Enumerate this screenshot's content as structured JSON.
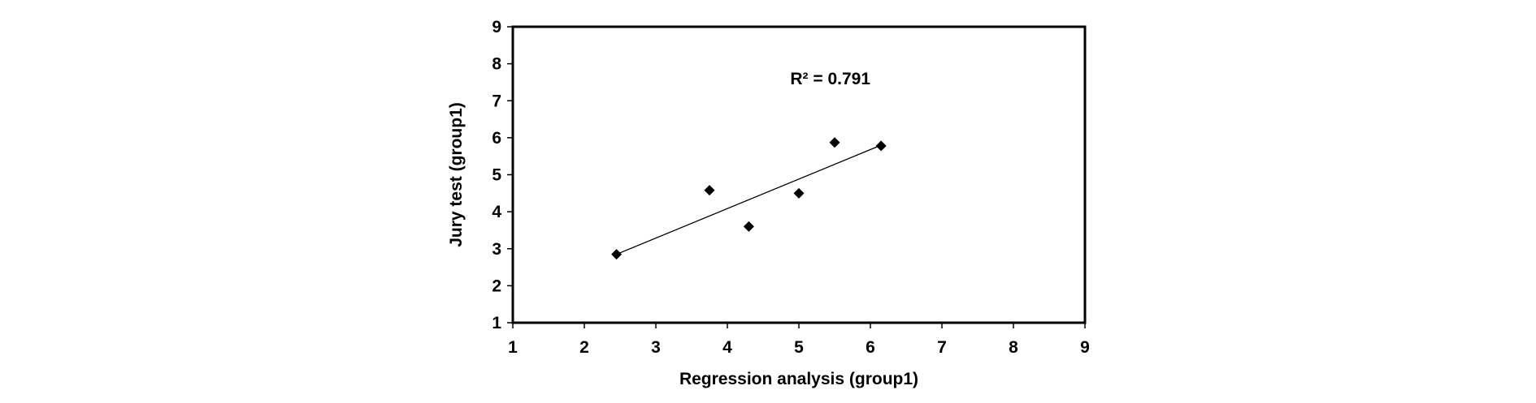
{
  "chart_data": {
    "type": "scatter",
    "title": "",
    "xlabel": "Regression analysis (group1)",
    "ylabel": "Jury test (group1)",
    "xlim": [
      1,
      9
    ],
    "ylim": [
      1,
      9
    ],
    "x_ticks": [
      "1",
      "2",
      "3",
      "4",
      "5",
      "6",
      "7",
      "8",
      "9"
    ],
    "y_ticks": [
      "1",
      "2",
      "3",
      "4",
      "5",
      "6",
      "7",
      "8",
      "9"
    ],
    "grid": false,
    "legend": "none",
    "marker": "diamond",
    "marker_color": "#000000",
    "series": [
      {
        "points": [
          {
            "x": 2.45,
            "y": 2.85
          },
          {
            "x": 3.75,
            "y": 4.58
          },
          {
            "x": 4.3,
            "y": 3.6
          },
          {
            "x": 5.0,
            "y": 4.5
          },
          {
            "x": 5.5,
            "y": 5.87
          },
          {
            "x": 6.15,
            "y": 5.78
          }
        ]
      }
    ],
    "trendline": {
      "type": "linear",
      "x_start": 2.45,
      "y_start": 2.85,
      "x_end": 6.15,
      "y_end": 5.8
    },
    "annotations": [
      {
        "text": "R² = 0.791",
        "x": 5.44,
        "y": 7.6
      }
    ]
  }
}
